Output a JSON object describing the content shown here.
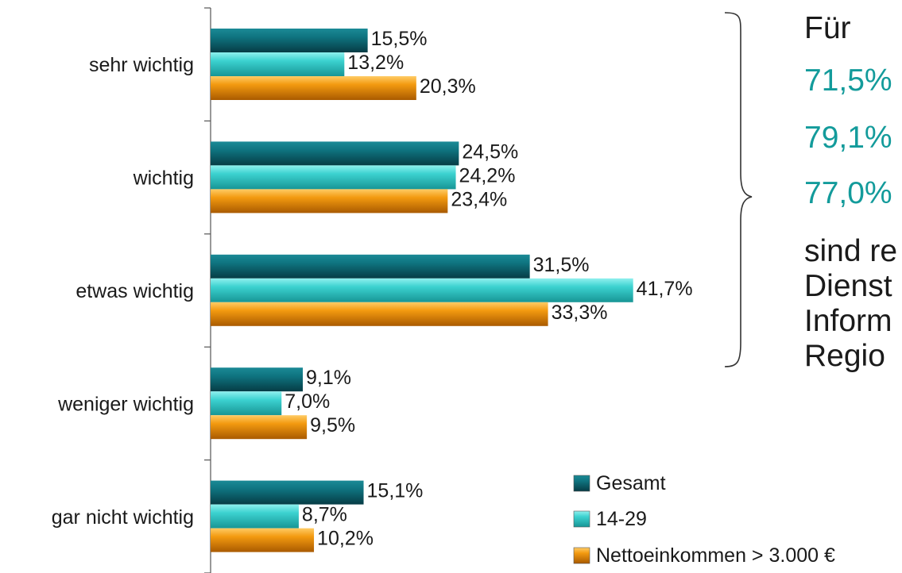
{
  "chart_data": {
    "type": "bar",
    "orientation": "horizontal",
    "categories": [
      "sehr wichtig",
      "wichtig",
      "etwas wichtig",
      "weniger wichtig",
      "gar nicht wichtig"
    ],
    "series": [
      {
        "name": "Gesamt",
        "values": [
          15.5,
          24.5,
          31.5,
          9.1,
          15.1
        ],
        "labels": [
          "15,5%",
          "24,5%",
          "31,5%",
          "9,1%",
          "15,1%"
        ]
      },
      {
        "name": "14-29",
        "values": [
          13.2,
          24.2,
          41.7,
          7.0,
          8.7
        ],
        "labels": [
          "13,2%",
          "24,2%",
          "41,7%",
          "7,0%",
          "8,7%"
        ]
      },
      {
        "name": "Nettoeinkommen > 3.000 €",
        "values": [
          20.3,
          23.4,
          33.3,
          9.5,
          10.2
        ],
        "labels": [
          "20,3%",
          "23,4%",
          "33,3%",
          "9,5%",
          "10,2%"
        ]
      }
    ],
    "xlim": [
      0,
      50
    ],
    "legend_position": "bottom-right",
    "grid": false
  },
  "colors": {
    "gesamt": "#0d6a75",
    "young": "#2ec3c3",
    "income": "#e78b00",
    "accent_text": "#139b9b"
  },
  "side_text": {
    "line1": "Für",
    "pct1": "71,5%",
    "pct2": "79,1%",
    "pct3": "77,0%",
    "line5": "sind re",
    "line6": "Dienst",
    "line7": "Inform",
    "line8": "Regio"
  }
}
